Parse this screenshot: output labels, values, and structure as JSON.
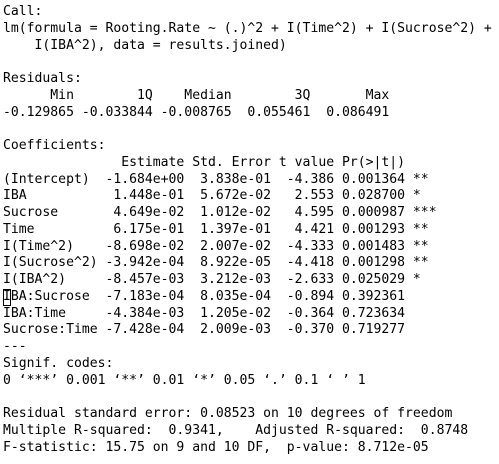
{
  "console": {
    "lines": [
      "Call:",
      "lm(formula = Rooting.Rate ~ (.)^2 + I(Time^2) + I(Sucrose^2) +",
      "    I(IBA^2), data = results.joined)",
      "",
      "Residuals:",
      "      Min        1Q    Median        3Q       Max ",
      "-0.129865 -0.033844 -0.008765  0.055461  0.086491 ",
      "",
      "Coefficients:",
      "               Estimate Std. Error t value Pr(>|t|)    ",
      "(Intercept)  -1.684e+00  3.838e-01  -4.386 0.001364 ** ",
      "IBA           1.448e-01  5.672e-02   2.553 0.028700 *  ",
      "Sucrose       4.649e-02  1.012e-02   4.595 0.000987 ***",
      "Time          6.175e-01  1.397e-01   4.421 0.001293 ** ",
      "I(Time^2)    -8.698e-02  2.007e-02  -4.333 0.001483 ** ",
      "I(Sucrose^2) -3.942e-04  8.922e-05  -4.418 0.001298 ** ",
      "I(IBA^2)     -8.457e-03  3.212e-03  -2.633 0.025029 *  ",
      "IBA:Sucrose  -7.183e-04  8.035e-04  -0.894 0.392361    ",
      "IBA:Time     -4.384e-03  1.205e-02  -0.364 0.723634    ",
      "Sucrose:Time -7.428e-04  2.009e-03  -0.370 0.719277    ",
      "---",
      "Signif. codes:  ",
      "0 ‘***’ 0.001 ‘**’ 0.01 ‘*’ 0.05 ‘.’ 0.1 ‘ ’ 1",
      "",
      "Residual standard error: 0.08523 on 10 degrees of freedom",
      "Multiple R-squared:  0.9341,\tAdjusted R-squared:  0.8748 ",
      "F-statistic: 15.75 on 9 and 10 DF,  p-value: 8.712e-05"
    ]
  }
}
